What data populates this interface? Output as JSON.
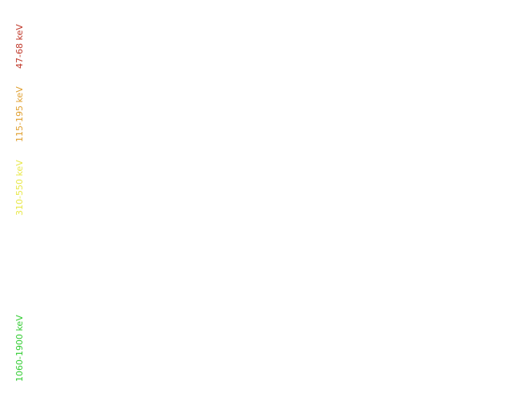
{
  "chart_data": {
    "type": "line",
    "title": "",
    "xlabel": "",
    "ylabel": "",
    "grid": false,
    "legend_placement": "left",
    "series": [
      {
        "name": "47-68 keV",
        "color": "#c0392b",
        "values": []
      },
      {
        "name": "115-195 keV",
        "color": "#e0a030",
        "values": []
      },
      {
        "name": "310-550 keV",
        "color": "#e8e84a",
        "values": []
      },
      {
        "name": "1060-1900 keV",
        "color": "#33cc33",
        "values": []
      }
    ]
  }
}
